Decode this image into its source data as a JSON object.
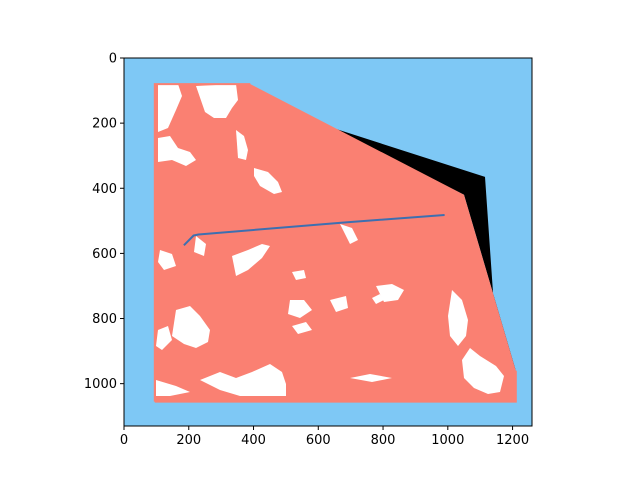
{
  "chart_data": {
    "type": "image",
    "title": "",
    "xlabel": "",
    "ylabel": "",
    "xlim": [
      0,
      1260
    ],
    "ylim": [
      1130,
      0
    ],
    "x_ticks": [
      0,
      200,
      400,
      600,
      800,
      1000,
      1200
    ],
    "y_ticks": [
      0,
      200,
      400,
      600,
      800,
      1000
    ],
    "grid": false,
    "background_color": "#7ec8f5",
    "region_color": "#fa8072",
    "region_outline_color": "#fa8072",
    "shadow_color": "#000000",
    "series": [
      {
        "type": "line",
        "color": "#3d6fb0",
        "x": [
          185,
          215,
          230,
          680,
          990
        ],
        "y": [
          575,
          545,
          542,
          505,
          482
        ]
      }
    ],
    "region_polygon": {
      "x": [
        95,
        390,
        1050,
        1210,
        1210,
        95
      ],
      "y": [
        80,
        80,
        420,
        960,
        1055,
        1055
      ]
    },
    "shadow_polygon": {
      "x": [
        630,
        1115,
        1145,
        1210,
        1050
      ],
      "y": [
        210,
        365,
        800,
        960,
        420
      ]
    }
  }
}
